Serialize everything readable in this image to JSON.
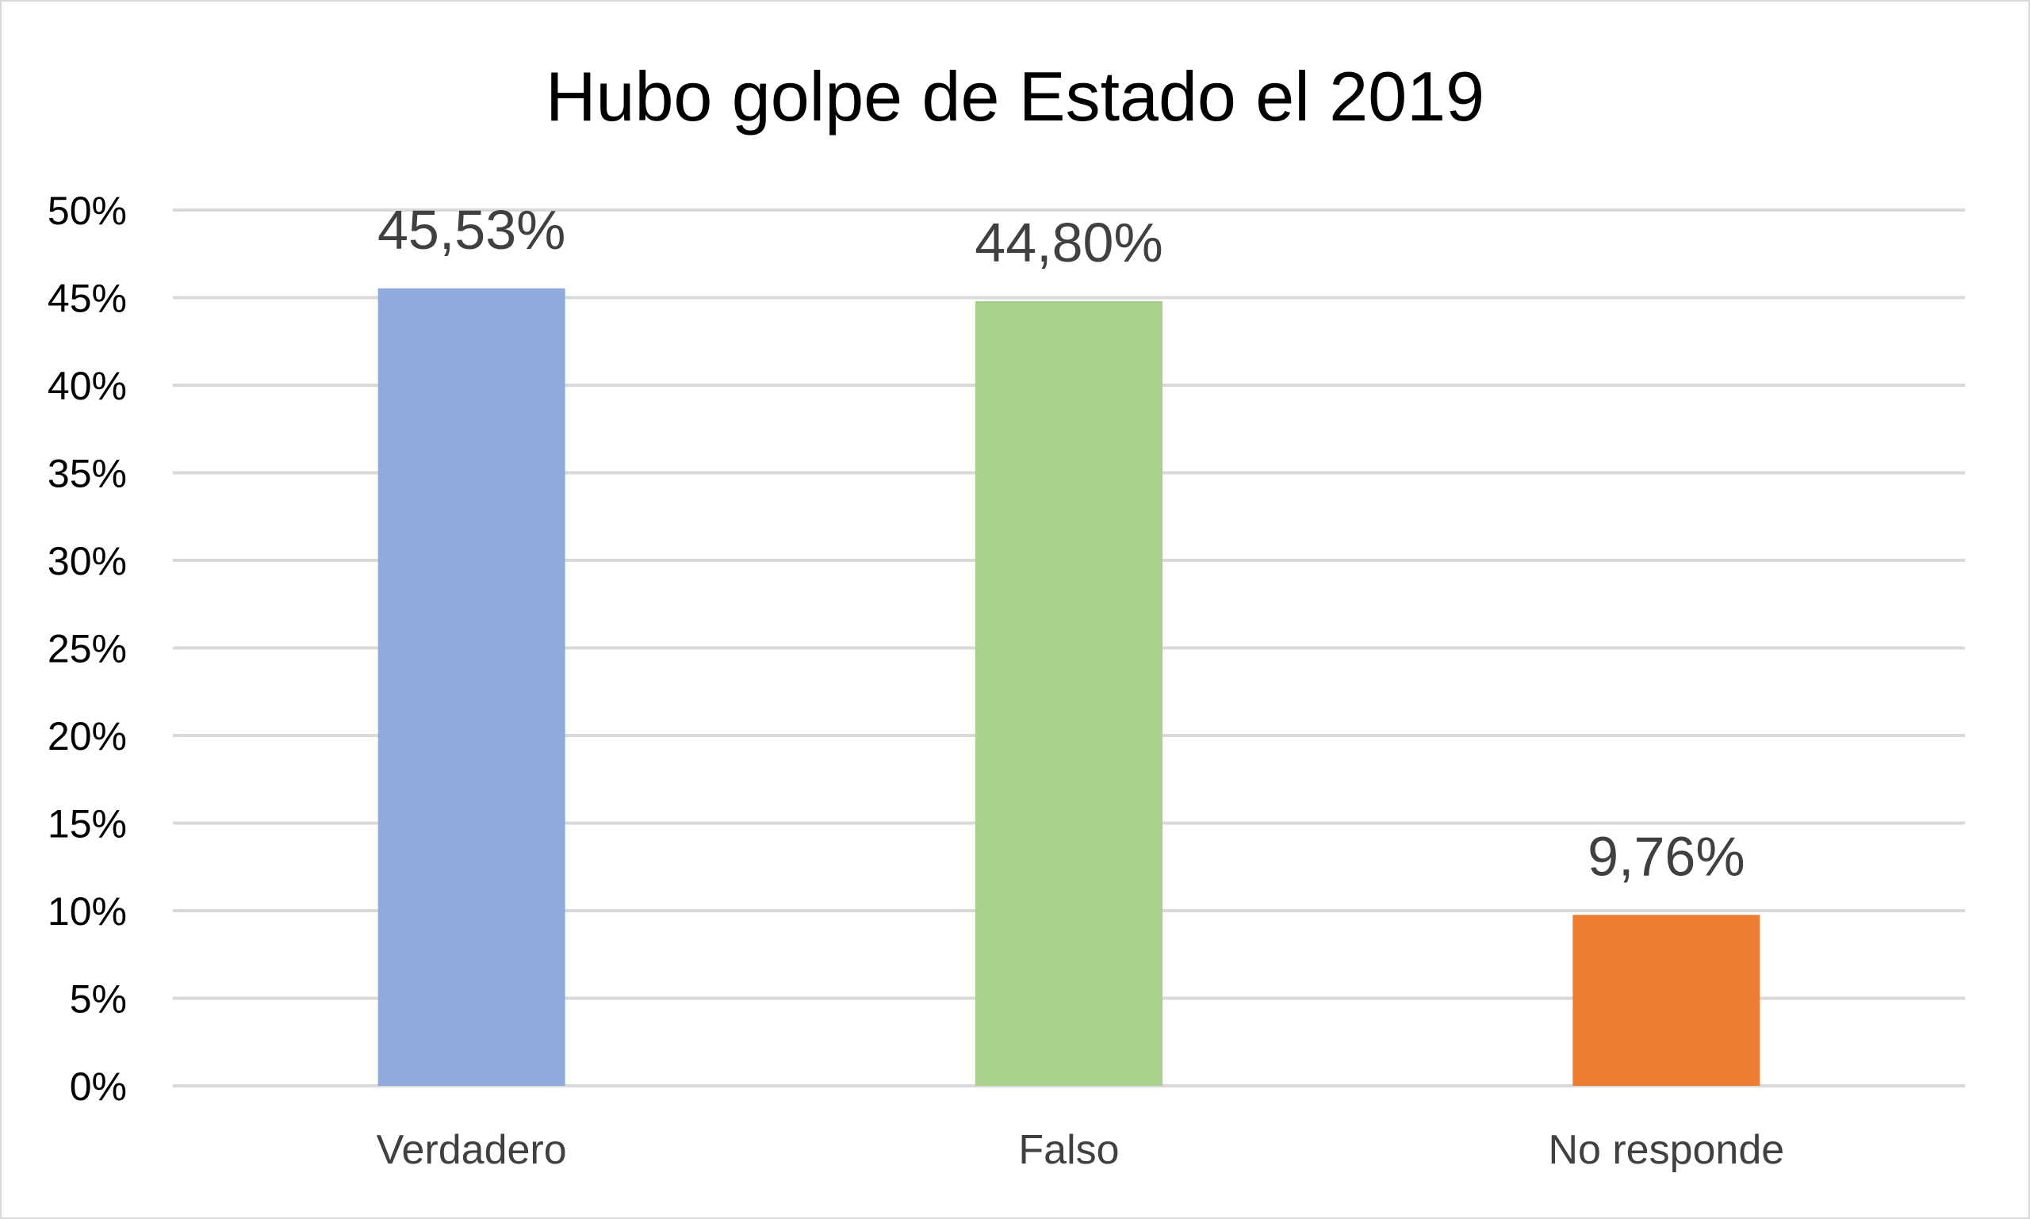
{
  "chart_data": {
    "type": "bar",
    "title": "Hubo golpe de Estado el 2019",
    "categories": [
      "Verdadero",
      "Falso",
      "No responde"
    ],
    "values": [
      45.53,
      44.8,
      9.76
    ],
    "data_labels": [
      "45,53%",
      "44,80%",
      "9,76%"
    ],
    "colors": [
      "#8faadc",
      "#a9d18e",
      "#ed7d31"
    ],
    "ylim": [
      0,
      50
    ],
    "yticks": [
      0,
      5,
      10,
      15,
      20,
      25,
      30,
      35,
      40,
      45,
      50
    ],
    "ytick_labels": [
      "0%",
      "5%",
      "10%",
      "15%",
      "20%",
      "25%",
      "30%",
      "35%",
      "40%",
      "45%",
      "50%"
    ],
    "gridlines": true,
    "legend": "none",
    "gridline_color": "#d9d9d9"
  }
}
